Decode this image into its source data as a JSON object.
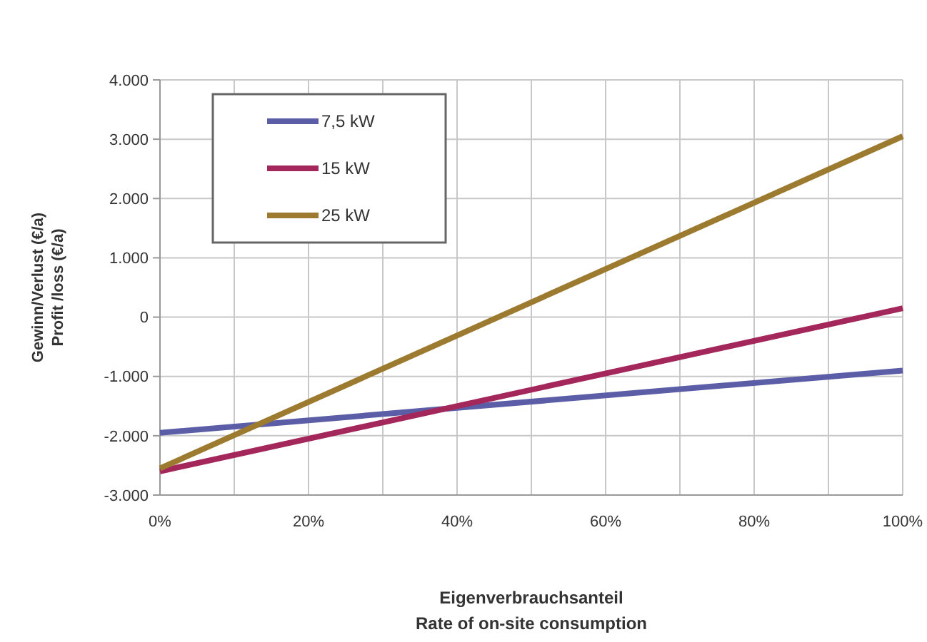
{
  "chart_data": {
    "type": "line",
    "xlabel": "Eigenverbrauchsanteil\nRate of on-site consumption",
    "ylabel": "Gewinn/Verlust (€/a)\nProfit /loss (€/a)",
    "x": [
      0,
      100
    ],
    "series": [
      {
        "name": "7,5 kW",
        "color": "#5b5ea6",
        "values": [
          -1950,
          -900
        ]
      },
      {
        "name": "15 kW",
        "color": "#a3275a",
        "values": [
          -2600,
          150
        ]
      },
      {
        "name": "25 kW",
        "color": "#9c7a2f",
        "values": [
          -2550,
          3050
        ]
      }
    ],
    "xlim": [
      0,
      100
    ],
    "xticks": [
      {
        "value": 0,
        "label": "0%"
      },
      {
        "value": 10,
        "label": null
      },
      {
        "value": 20,
        "label": "20%"
      },
      {
        "value": 30,
        "label": null
      },
      {
        "value": 40,
        "label": "40%"
      },
      {
        "value": 50,
        "label": null
      },
      {
        "value": 60,
        "label": "60%"
      },
      {
        "value": 70,
        "label": null
      },
      {
        "value": 80,
        "label": "80%"
      },
      {
        "value": 90,
        "label": null
      },
      {
        "value": 100,
        "label": "100%"
      }
    ],
    "ylim": [
      -3000,
      4000
    ],
    "yticks": [
      {
        "value": -3000,
        "label": "-3.000"
      },
      {
        "value": -2000,
        "label": "-2.000"
      },
      {
        "value": -1000,
        "label": "-1.000"
      },
      0,
      {
        "value": 1000,
        "label": "1.000"
      },
      {
        "value": 2000,
        "label": "2.000"
      },
      {
        "value": 3000,
        "label": "3.000"
      },
      {
        "value": 4000,
        "label": "4.000"
      }
    ],
    "grid": true,
    "legend": "top left",
    "marker": "none",
    "line_style": "solid"
  }
}
